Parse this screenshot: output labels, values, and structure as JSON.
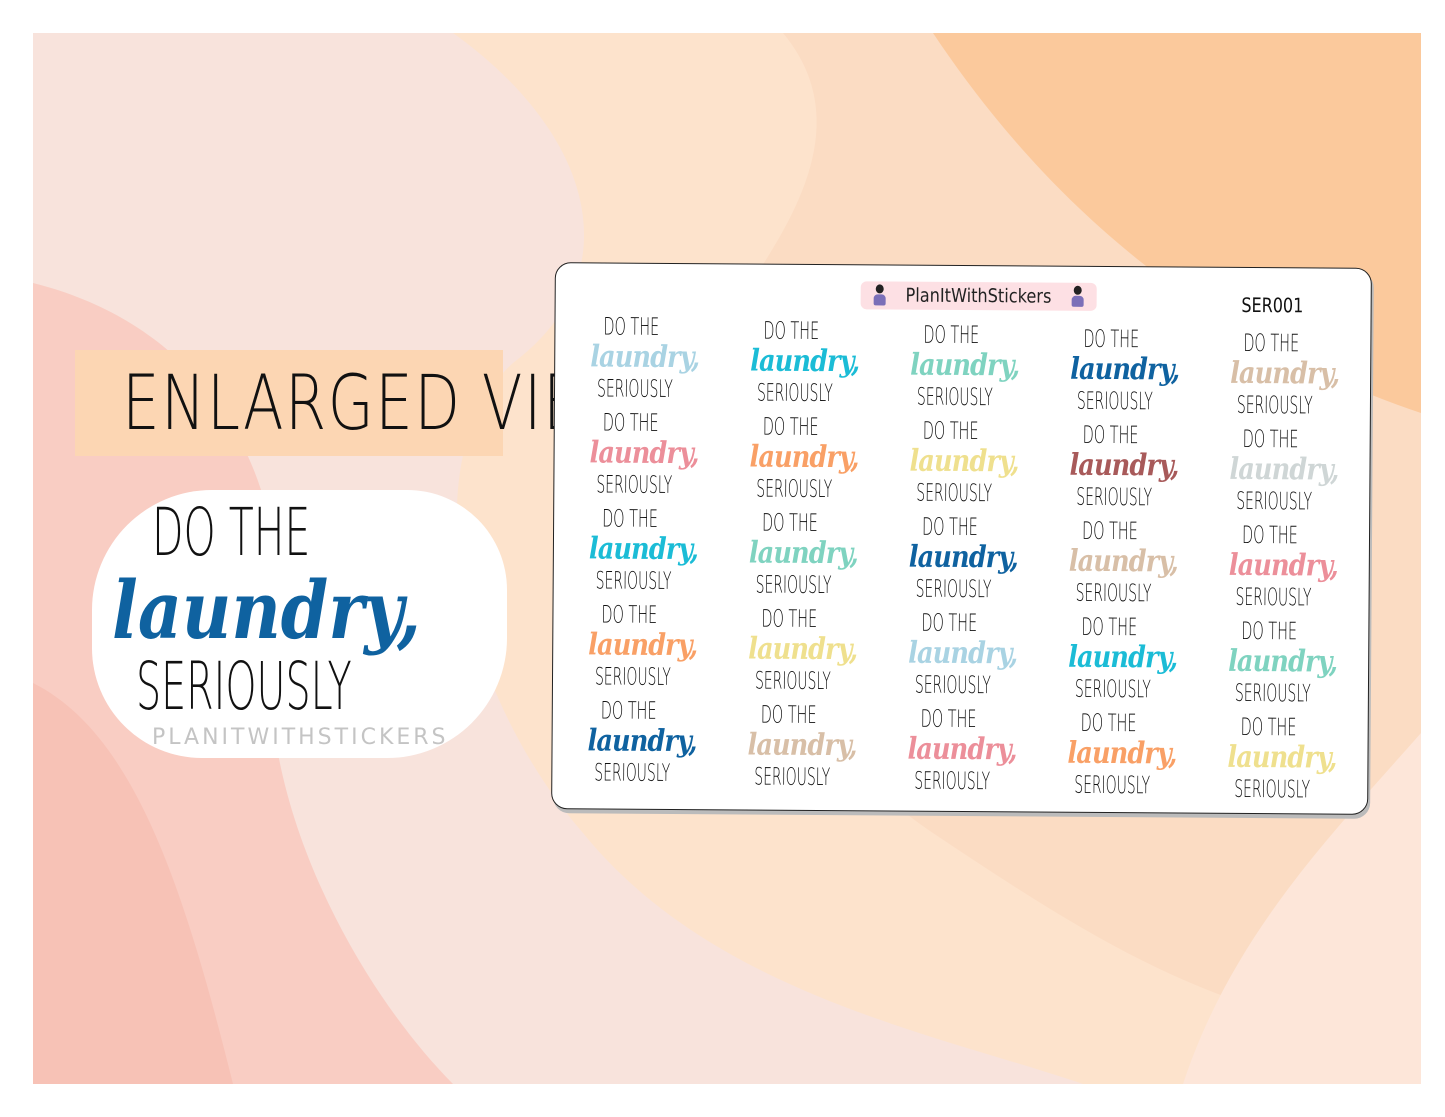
{
  "label": "ENLARGED VIEW",
  "watermark": "PLANITWITHSTICKERS",
  "sticker": {
    "line1": "DO THE",
    "line2": "laundry,",
    "line3": "SERIOUSLY",
    "color": "#0f62a0"
  },
  "sheet": {
    "brand": "PlanItWithStickers",
    "code": "SER001",
    "colors": [
      [
        "#a9d3e3",
        "#1bbcd6",
        "#7fd3c0",
        "#0f62a0",
        "#d8bfa7"
      ],
      [
        "#ec8f9a",
        "#f9a066",
        "#efe08e",
        "#a85a5a",
        "#cfd6d6"
      ],
      [
        "#1bbcd6",
        "#7fd3c0",
        "#0f62a0",
        "#d8bfa7",
        "#ec8f9a"
      ],
      [
        "#f9a066",
        "#efe08e",
        "#a9d3e3",
        "#1bbcd6",
        "#7fd3c0"
      ],
      [
        "#0f62a0",
        "#d8bfa7",
        "#ec8f9a",
        "#f9a066",
        "#efe08e"
      ]
    ]
  },
  "background": {
    "colors": [
      "#f7e4dc",
      "#fde3cc",
      "#fbd3b0",
      "#f9c8bd",
      "#fcdcd4"
    ]
  }
}
